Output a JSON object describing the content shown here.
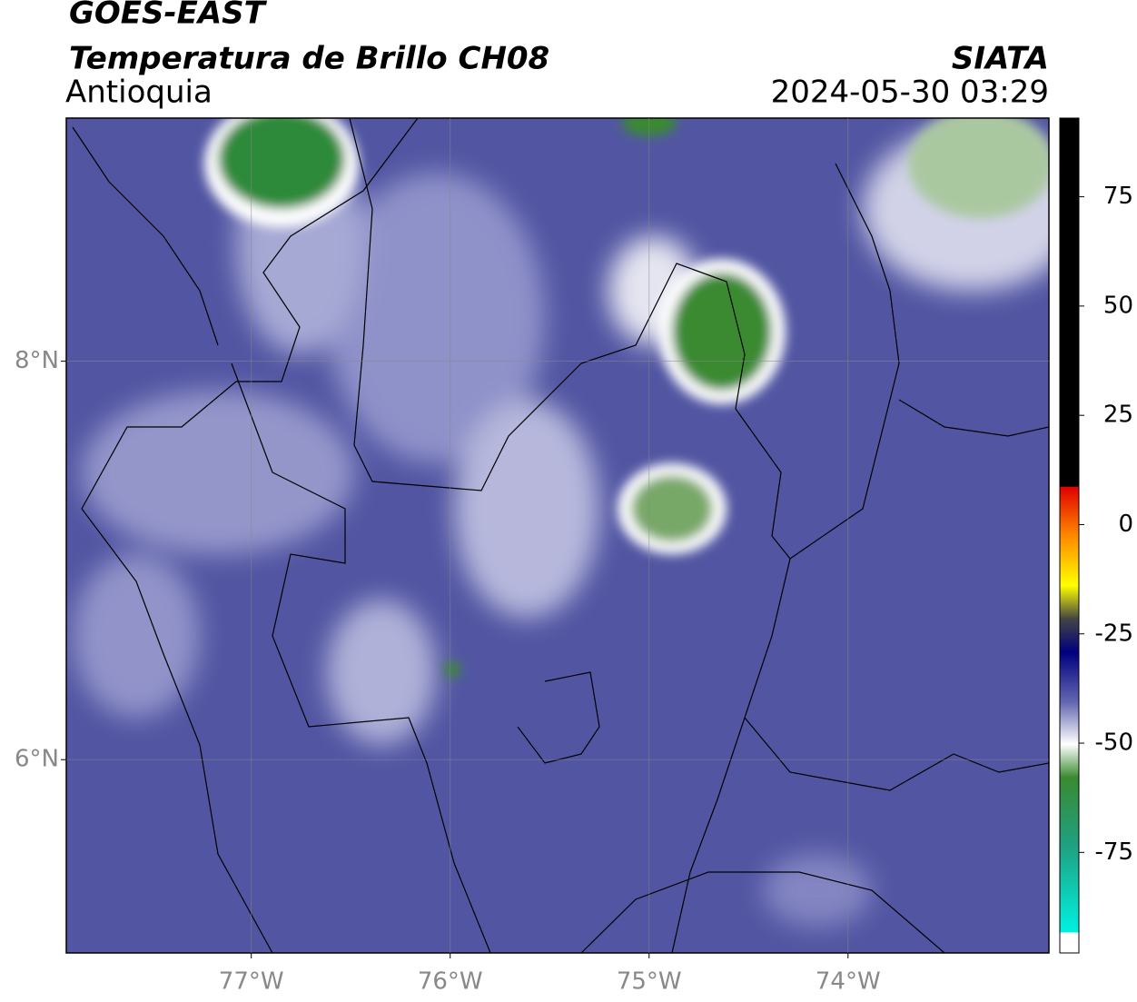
{
  "header": {
    "satellite": "GOES-EAST",
    "product": "Temperatura de Brillo CH08",
    "region": "Antioquia",
    "source": "SIATA",
    "datetime": "2024-05-30 03:29"
  },
  "map": {
    "lon_lim": [
      -77.93,
      -72.99
    ],
    "lat_lim": [
      5.03,
      9.22
    ],
    "lon_ticks": [
      {
        "value": -77,
        "label": "77°W"
      },
      {
        "value": -76,
        "label": "76°W"
      },
      {
        "value": -75,
        "label": "75°W"
      },
      {
        "value": -74,
        "label": "74°W"
      }
    ],
    "lat_ticks": [
      {
        "value": 8,
        "label": "8°N"
      },
      {
        "value": 6,
        "label": "6°N"
      }
    ],
    "grid": true
  },
  "colorbar": {
    "lim": [
      -98,
      93
    ],
    "ticks": [
      75,
      50,
      25,
      0,
      -25,
      -50,
      -75
    ]
  }
}
